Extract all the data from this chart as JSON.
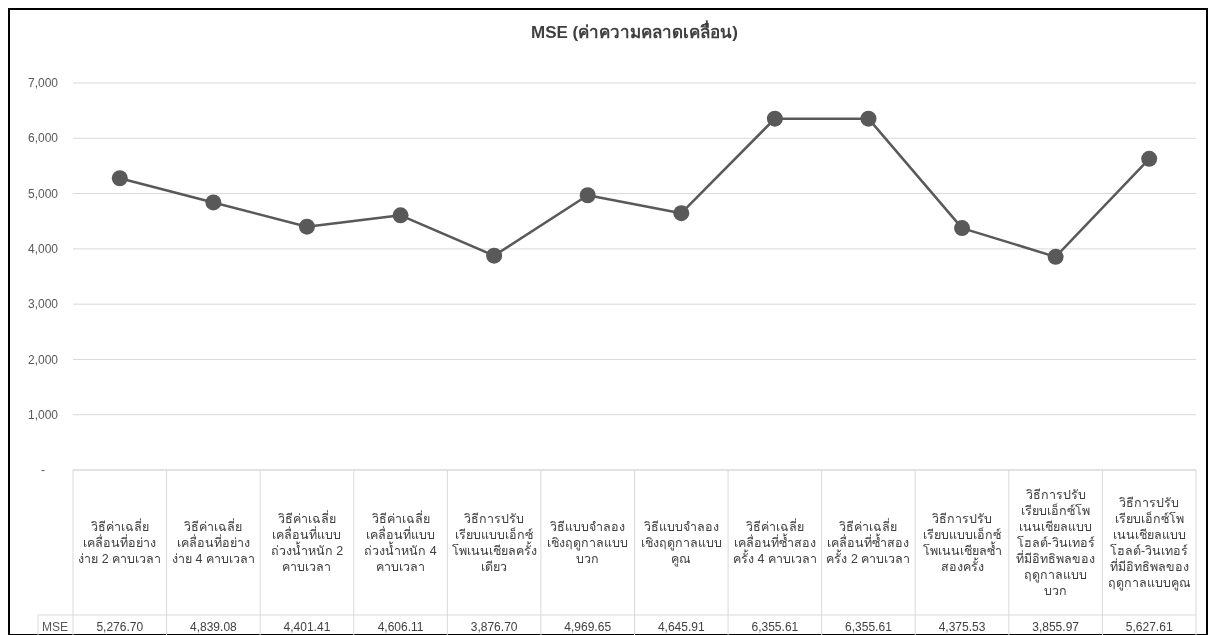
{
  "chart_data": {
    "type": "line",
    "title": "MSE (ค่าความคลาดเคลื่อน)",
    "categories": [
      "วิธีค่าเฉลี่ยเคลื่อนที่อย่างง่าย 2 คาบเวลา",
      "วิธีค่าเฉลี่ยเคลื่อนที่อย่างง่าย 4 คาบเวลา",
      "วิธีค่าเฉลี่ยเคลื่อนที่แบบถ่วงน้ำหนัก 2 คาบเวลา",
      "วิธีค่าเฉลี่ยเคลื่อนที่แบบถ่วงน้ำหนัก 4 คาบเวลา",
      "วิธีการปรับเรียบแบบเอ็กซ์โพเนนเชียลครั้งเดียว",
      "วิธีแบบจำลองเชิงฤดูกาลแบบบวก",
      "วิธีแบบจำลองเชิงฤดูกาลแบบคูณ",
      "วิธีค่าเฉลี่ยเคลื่อนที่ซ้ำสองครั้ง 4 คาบเวลา",
      "วิธีค่าเฉลี่ยเคลื่อนที่ซ้ำสองครั้ง 2 คาบเวลา",
      "วิธีการปรับเรียบแบบเอ็กซ์โพเนนเชียลซ้ำสองครั้ง",
      "วิธีการปรับเรียบเอ็กซ์โพเนนเชียลแบบโฮลต์-วินเทอร์ที่มีอิทธิพลของฤดูกาลแบบบวก",
      "วิธีการปรับเรียบเอ็กซ์โพเนนเชียลแบบโฮลต์-วินเทอร์ที่มีอิทธิพลของฤดูกาลแบบคูณ"
    ],
    "series": [
      {
        "name": "MSE",
        "color": "#595959",
        "values": [
          5276.7,
          4839.08,
          4401.41,
          4606.11,
          3876.7,
          4969.65,
          4645.91,
          6355.61,
          6355.61,
          4375.53,
          3855.97,
          5627.61
        ],
        "value_labels": [
          "5,276.70",
          "4,839.08",
          "4,401.41",
          "4,606.11",
          "3,876.70",
          "4,969.65",
          "4,645.91",
          "6,355.61",
          "6,355.61",
          "4,375.53",
          "3,855.97",
          "5,627.61"
        ]
      }
    ],
    "ylim": [
      0,
      7000
    ],
    "yticks": [
      {
        "value": 0,
        "label": "-"
      },
      {
        "value": 1000,
        "label": "1,000"
      },
      {
        "value": 2000,
        "label": "2,000"
      },
      {
        "value": 3000,
        "label": "3,000"
      },
      {
        "value": 4000,
        "label": "4,000"
      },
      {
        "value": 5000,
        "label": "5,000"
      },
      {
        "value": 6000,
        "label": "6,000"
      },
      {
        "value": 7000,
        "label": "7,000"
      }
    ],
    "grid": "y",
    "marker": "circle",
    "line_style": "solid"
  }
}
